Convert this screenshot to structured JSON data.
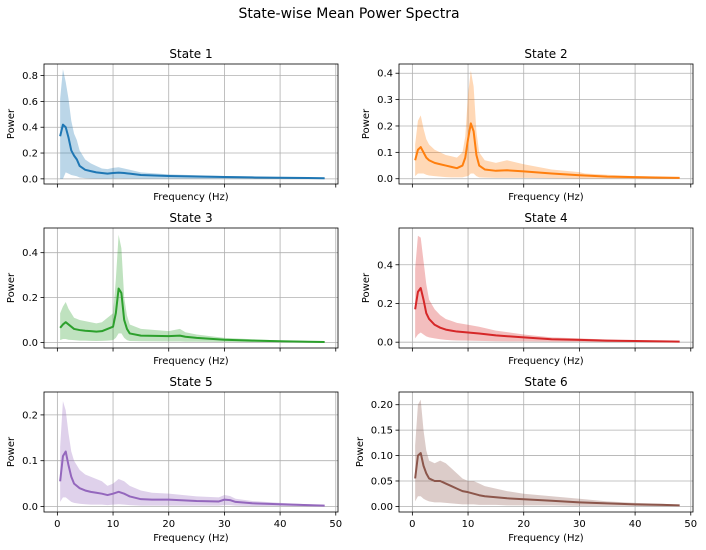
{
  "figure": {
    "title": "State-wise Mean Power Spectra"
  },
  "chart_data": [
    {
      "type": "area",
      "title": "State 1",
      "xlabel": "Frequency (Hz)",
      "ylabel": "Power",
      "color": "#1f77b4",
      "xlim": [
        -2.4,
        50.4
      ],
      "ylim": [
        -0.04,
        0.89
      ],
      "xticks": [
        0,
        10,
        20,
        30,
        40,
        50
      ],
      "show_xticklabels": false,
      "yticks": [
        0.0,
        0.2,
        0.4,
        0.6,
        0.8
      ],
      "yticklabels": [
        "0.0",
        "0.2",
        "0.4",
        "0.6",
        "0.8"
      ],
      "grid": true,
      "x": [
        0.5,
        1.0,
        1.5,
        2.0,
        2.5,
        3.0,
        3.5,
        4.0,
        5.0,
        6.0,
        7.0,
        8.0,
        9.0,
        10.0,
        11.0,
        12.0,
        13.0,
        15.0,
        20.0,
        25.0,
        30.0,
        35.0,
        40.0,
        45.0,
        48.0
      ],
      "mean": [
        0.33,
        0.42,
        0.4,
        0.32,
        0.22,
        0.18,
        0.15,
        0.1,
        0.07,
        0.06,
        0.05,
        0.045,
        0.04,
        0.045,
        0.048,
        0.045,
        0.04,
        0.03,
        0.022,
        0.018,
        0.014,
        0.011,
        0.008,
        0.006,
        0.005
      ],
      "upper": [
        0.62,
        0.85,
        0.75,
        0.62,
        0.45,
        0.35,
        0.3,
        0.22,
        0.15,
        0.12,
        0.1,
        0.08,
        0.075,
        0.085,
        0.09,
        0.08,
        0.07,
        0.05,
        0.035,
        0.028,
        0.022,
        0.017,
        0.013,
        0.01,
        0.008
      ],
      "lower": [
        0.0,
        0.0,
        0.05,
        0.04,
        0.03,
        0.025,
        0.02,
        0.01,
        0.005,
        0.003,
        0.002,
        0.002,
        0.002,
        0.003,
        0.004,
        0.003,
        0.003,
        0.002,
        0.002,
        0.001,
        0.001,
        0.001,
        0.001,
        0.0,
        0.0
      ]
    },
    {
      "type": "area",
      "title": "State 2",
      "xlabel": "Frequency (Hz)",
      "ylabel": "Power",
      "color": "#ff7f0e",
      "xlim": [
        -2.4,
        50.4
      ],
      "ylim": [
        -0.02,
        0.435
      ],
      "xticks": [
        0,
        10,
        20,
        30,
        40,
        50
      ],
      "show_xticklabels": false,
      "yticks": [
        0.0,
        0.1,
        0.2,
        0.3,
        0.4
      ],
      "yticklabels": [
        "0.0",
        "0.1",
        "0.2",
        "0.3",
        "0.4"
      ],
      "grid": true,
      "x": [
        0.5,
        1.0,
        1.5,
        2.0,
        2.5,
        3.0,
        4.0,
        5.0,
        6.0,
        7.0,
        8.0,
        9.0,
        9.5,
        10.0,
        10.5,
        11.0,
        11.5,
        12.0,
        13.0,
        15.0,
        17.0,
        20.0,
        25.0,
        30.0,
        31.0,
        35.0,
        40.0,
        45.0,
        48.0
      ],
      "mean": [
        0.07,
        0.11,
        0.12,
        0.1,
        0.08,
        0.07,
        0.06,
        0.055,
        0.05,
        0.045,
        0.04,
        0.05,
        0.08,
        0.15,
        0.21,
        0.18,
        0.09,
        0.05,
        0.035,
        0.03,
        0.032,
        0.028,
        0.02,
        0.013,
        0.012,
        0.008,
        0.006,
        0.004,
        0.003
      ],
      "upper": [
        0.13,
        0.22,
        0.24,
        0.19,
        0.15,
        0.13,
        0.11,
        0.1,
        0.09,
        0.085,
        0.08,
        0.1,
        0.16,
        0.32,
        0.41,
        0.35,
        0.18,
        0.1,
        0.07,
        0.06,
        0.07,
        0.055,
        0.035,
        0.025,
        0.02,
        0.015,
        0.01,
        0.007,
        0.005
      ],
      "lower": [
        0.01,
        0.02,
        0.02,
        0.02,
        0.015,
        0.012,
        0.01,
        0.008,
        0.006,
        0.005,
        0.005,
        0.005,
        0.008,
        0.01,
        0.02,
        0.02,
        0.01,
        0.005,
        0.004,
        0.003,
        0.003,
        0.003,
        0.002,
        0.001,
        0.001,
        0.001,
        0.0,
        0.0,
        0.0
      ]
    },
    {
      "type": "area",
      "title": "State 3",
      "xlabel": "Frequency (Hz)",
      "ylabel": "Power",
      "color": "#2ca02c",
      "xlim": [
        -2.4,
        50.4
      ],
      "ylim": [
        -0.025,
        0.51
      ],
      "xticks": [
        0,
        10,
        20,
        30,
        40,
        50
      ],
      "show_xticklabels": false,
      "yticks": [
        0.0,
        0.2,
        0.4
      ],
      "yticklabels": [
        "0.0",
        "0.2",
        "0.4"
      ],
      "grid": true,
      "x": [
        0.5,
        1.0,
        1.5,
        2.0,
        3.0,
        4.0,
        5.0,
        6.0,
        7.0,
        8.0,
        9.0,
        10.0,
        10.5,
        11.0,
        11.5,
        12.0,
        12.5,
        13.0,
        15.0,
        20.0,
        22.0,
        23.0,
        25.0,
        30.0,
        35.0,
        40.0,
        45.0,
        48.0
      ],
      "mean": [
        0.065,
        0.08,
        0.09,
        0.08,
        0.06,
        0.055,
        0.052,
        0.05,
        0.048,
        0.05,
        0.06,
        0.07,
        0.13,
        0.24,
        0.22,
        0.1,
        0.06,
        0.04,
        0.03,
        0.028,
        0.03,
        0.025,
        0.02,
        0.012,
        0.008,
        0.005,
        0.003,
        0.002
      ],
      "upper": [
        0.13,
        0.16,
        0.18,
        0.15,
        0.11,
        0.1,
        0.095,
        0.09,
        0.085,
        0.09,
        0.11,
        0.13,
        0.28,
        0.48,
        0.42,
        0.2,
        0.12,
        0.08,
        0.06,
        0.05,
        0.06,
        0.045,
        0.035,
        0.02,
        0.014,
        0.009,
        0.006,
        0.004
      ],
      "lower": [
        0.01,
        0.015,
        0.015,
        0.012,
        0.01,
        0.008,
        0.008,
        0.007,
        0.006,
        0.007,
        0.008,
        0.01,
        0.02,
        0.04,
        0.04,
        0.02,
        0.01,
        0.006,
        0.005,
        0.004,
        0.004,
        0.003,
        0.003,
        0.002,
        0.001,
        0.001,
        0.0,
        0.0
      ]
    },
    {
      "type": "area",
      "title": "State 4",
      "xlabel": "Frequency (Hz)",
      "ylabel": "Power",
      "color": "#d62728",
      "xlim": [
        -2.4,
        50.4
      ],
      "ylim": [
        -0.03,
        0.59
      ],
      "xticks": [
        0,
        10,
        20,
        30,
        40,
        50
      ],
      "show_xticklabels": false,
      "yticks": [
        0.0,
        0.2,
        0.4
      ],
      "yticklabels": [
        "0.0",
        "0.2",
        "0.4"
      ],
      "grid": true,
      "x": [
        0.5,
        1.0,
        1.5,
        2.0,
        2.5,
        3.0,
        4.0,
        5.0,
        6.0,
        7.0,
        8.0,
        10.0,
        12.0,
        15.0,
        20.0,
        25.0,
        30.0,
        35.0,
        40.0,
        45.0,
        48.0
      ],
      "mean": [
        0.17,
        0.26,
        0.28,
        0.22,
        0.15,
        0.12,
        0.09,
        0.075,
        0.065,
        0.06,
        0.055,
        0.05,
        0.045,
        0.035,
        0.025,
        0.015,
        0.012,
        0.008,
        0.006,
        0.004,
        0.003
      ],
      "upper": [
        0.38,
        0.55,
        0.54,
        0.42,
        0.3,
        0.22,
        0.17,
        0.14,
        0.12,
        0.11,
        0.1,
        0.09,
        0.08,
        0.06,
        0.04,
        0.025,
        0.02,
        0.013,
        0.009,
        0.006,
        0.005
      ],
      "lower": [
        0.02,
        0.04,
        0.05,
        0.04,
        0.03,
        0.025,
        0.02,
        0.015,
        0.012,
        0.01,
        0.009,
        0.008,
        0.007,
        0.005,
        0.004,
        0.003,
        0.002,
        0.001,
        0.001,
        0.0,
        0.0
      ]
    },
    {
      "type": "area",
      "title": "State 5",
      "xlabel": "Frequency (Hz)",
      "ylabel": "Power",
      "color": "#9467bd",
      "xlim": [
        -2.4,
        50.4
      ],
      "ylim": [
        -0.012,
        0.25
      ],
      "xticks": [
        0,
        10,
        20,
        30,
        40,
        50
      ],
      "show_xticklabels": true,
      "xticklabels": [
        "0",
        "10",
        "20",
        "30",
        "40",
        "50"
      ],
      "yticks": [
        0.0,
        0.1,
        0.2
      ],
      "yticklabels": [
        "0.0",
        "0.1",
        "0.2"
      ],
      "grid": true,
      "x": [
        0.5,
        1.0,
        1.5,
        2.0,
        2.5,
        3.0,
        4.0,
        5.0,
        6.0,
        7.0,
        8.0,
        9.0,
        10.0,
        11.0,
        12.0,
        13.0,
        15.0,
        17.0,
        20.0,
        25.0,
        29.0,
        30.0,
        31.0,
        32.0,
        35.0,
        40.0,
        45.0,
        48.0
      ],
      "mean": [
        0.055,
        0.11,
        0.12,
        0.09,
        0.065,
        0.05,
        0.04,
        0.035,
        0.032,
        0.03,
        0.028,
        0.025,
        0.028,
        0.032,
        0.028,
        0.022,
        0.016,
        0.015,
        0.015,
        0.012,
        0.011,
        0.015,
        0.014,
        0.01,
        0.007,
        0.005,
        0.003,
        0.002
      ],
      "upper": [
        0.13,
        0.23,
        0.21,
        0.16,
        0.12,
        0.1,
        0.08,
        0.07,
        0.065,
        0.06,
        0.055,
        0.045,
        0.05,
        0.06,
        0.055,
        0.045,
        0.035,
        0.03,
        0.028,
        0.022,
        0.02,
        0.025,
        0.023,
        0.017,
        0.012,
        0.008,
        0.005,
        0.003
      ],
      "lower": [
        0.01,
        0.02,
        0.02,
        0.015,
        0.01,
        0.008,
        0.006,
        0.005,
        0.004,
        0.004,
        0.004,
        0.003,
        0.004,
        0.005,
        0.004,
        0.003,
        0.002,
        0.002,
        0.002,
        0.002,
        0.002,
        0.003,
        0.003,
        0.002,
        0.001,
        0.001,
        0.0,
        0.0
      ]
    },
    {
      "type": "area",
      "title": "State 6",
      "xlabel": "Frequency (Hz)",
      "ylabel": "Power",
      "color": "#8c564b",
      "xlim": [
        -2.4,
        50.4
      ],
      "ylim": [
        -0.011,
        0.225
      ],
      "xticks": [
        0,
        10,
        20,
        30,
        40,
        50
      ],
      "show_xticklabels": true,
      "xticklabels": [
        "0",
        "10",
        "20",
        "30",
        "40",
        "50"
      ],
      "yticks": [
        0.0,
        0.05,
        0.1,
        0.15,
        0.2
      ],
      "yticklabels": [
        "0.00",
        "0.05",
        "0.10",
        "0.15",
        "0.20"
      ],
      "grid": true,
      "x": [
        0.5,
        1.0,
        1.5,
        2.0,
        2.5,
        3.0,
        4.0,
        5.0,
        6.0,
        7.0,
        8.0,
        9.0,
        10.0,
        11.0,
        12.0,
        13.0,
        15.0,
        17.0,
        20.0,
        25.0,
        30.0,
        35.0,
        40.0,
        45.0,
        48.0
      ],
      "mean": [
        0.055,
        0.1,
        0.105,
        0.08,
        0.065,
        0.055,
        0.05,
        0.05,
        0.045,
        0.04,
        0.035,
        0.03,
        0.028,
        0.025,
        0.022,
        0.02,
        0.018,
        0.016,
        0.014,
        0.011,
        0.008,
        0.006,
        0.004,
        0.003,
        0.002
      ],
      "upper": [
        0.12,
        0.2,
        0.21,
        0.15,
        0.11,
        0.09,
        0.085,
        0.09,
        0.085,
        0.075,
        0.065,
        0.055,
        0.05,
        0.05,
        0.045,
        0.04,
        0.035,
        0.03,
        0.025,
        0.02,
        0.015,
        0.01,
        0.007,
        0.005,
        0.003
      ],
      "lower": [
        0.01,
        0.02,
        0.02,
        0.015,
        0.012,
        0.01,
        0.008,
        0.008,
        0.007,
        0.006,
        0.005,
        0.004,
        0.004,
        0.004,
        0.003,
        0.003,
        0.003,
        0.002,
        0.002,
        0.002,
        0.001,
        0.001,
        0.001,
        0.0,
        0.0
      ]
    }
  ]
}
